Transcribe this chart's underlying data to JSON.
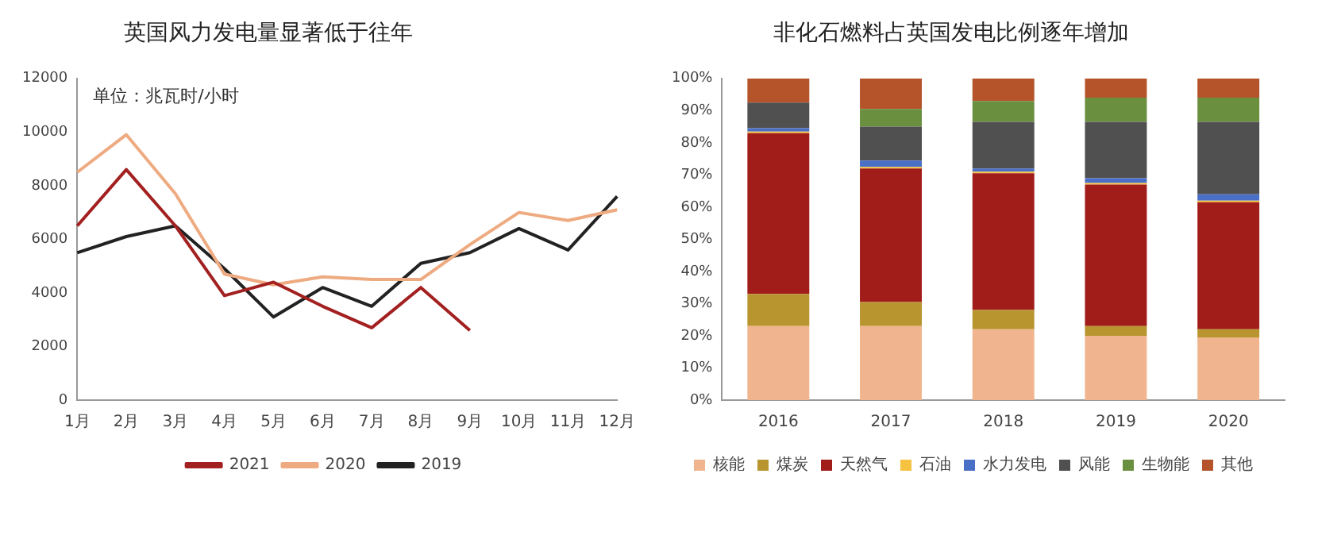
{
  "chart_data": [
    {
      "type": "line",
      "title": "英国风力发电量显著低于往年",
      "annotations": [
        "单位：兆瓦时/小时"
      ],
      "categories": [
        "1月",
        "2月",
        "3月",
        "4月",
        "5月",
        "6月",
        "7月",
        "8月",
        "9月",
        "10月",
        "11月",
        "12月"
      ],
      "series": [
        {
          "name": "2021",
          "color": "#a32020",
          "values": [
            6500,
            8600,
            6500,
            3900,
            4400,
            3500,
            2700,
            4200,
            2600,
            null,
            null,
            null
          ]
        },
        {
          "name": "2020",
          "color": "#eeaa80",
          "values": [
            8500,
            9900,
            7700,
            4700,
            4300,
            4600,
            4500,
            4500,
            5800,
            7000,
            6700,
            7100
          ]
        },
        {
          "name": "2019",
          "color": "#222222",
          "values": [
            5500,
            6100,
            6500,
            4900,
            3100,
            4200,
            3500,
            5100,
            5500,
            6400,
            5600,
            7600
          ]
        }
      ],
      "ylim": [
        0,
        12000
      ],
      "yticks": [
        0,
        2000,
        4000,
        6000,
        8000,
        10000,
        12000
      ],
      "grid": false,
      "legend": "bottom",
      "marker": "none",
      "line_style": "solid"
    },
    {
      "type": "bar",
      "title": "非化石燃料占英国发电比例逐年增加",
      "categories": [
        "2016",
        "2017",
        "2018",
        "2019",
        "2020"
      ],
      "stacked": true,
      "series": [
        {
          "name": "核能",
          "color": "#f0b58e",
          "values": [
            23,
            23,
            22,
            20,
            19.5
          ]
        },
        {
          "name": "煤炭",
          "color": "#b8952e",
          "values": [
            10,
            7.5,
            6,
            3,
            2.5
          ]
        },
        {
          "name": "天然气",
          "color": "#a01d1a",
          "values": [
            50,
            41.5,
            42.5,
            44,
            39.5
          ]
        },
        {
          "name": "石油",
          "color": "#f5c242",
          "values": [
            0.5,
            0.5,
            0.5,
            0.5,
            0.5
          ]
        },
        {
          "name": "水力发电",
          "color": "#4a6fc7",
          "values": [
            1,
            2,
            1,
            1.5,
            2
          ]
        },
        {
          "name": "风能",
          "color": "#505050",
          "values": [
            8,
            10.5,
            14.5,
            17.5,
            22.5
          ]
        },
        {
          "name": "生物能",
          "color": "#6a8f3f",
          "values": [
            0,
            5.5,
            6.5,
            7.5,
            7.5
          ]
        },
        {
          "name": "其他",
          "color": "#b5542a",
          "values": [
            7.5,
            9.5,
            7,
            6,
            6
          ]
        }
      ],
      "ylim": [
        0,
        100
      ],
      "yticks": [
        {
          "value": 0,
          "label": "0%"
        },
        {
          "value": 10,
          "label": "10%"
        },
        {
          "value": 20,
          "label": "20%"
        },
        {
          "value": 30,
          "label": "30%"
        },
        {
          "value": 40,
          "label": "40%"
        },
        {
          "value": 50,
          "label": "50%"
        },
        {
          "value": 60,
          "label": "60%"
        },
        {
          "value": 70,
          "label": "70%"
        },
        {
          "value": 80,
          "label": "80%"
        },
        {
          "value": 90,
          "label": "90%"
        },
        {
          "value": 100,
          "label": "100%"
        }
      ],
      "grid": false,
      "legend": "bottom"
    }
  ]
}
